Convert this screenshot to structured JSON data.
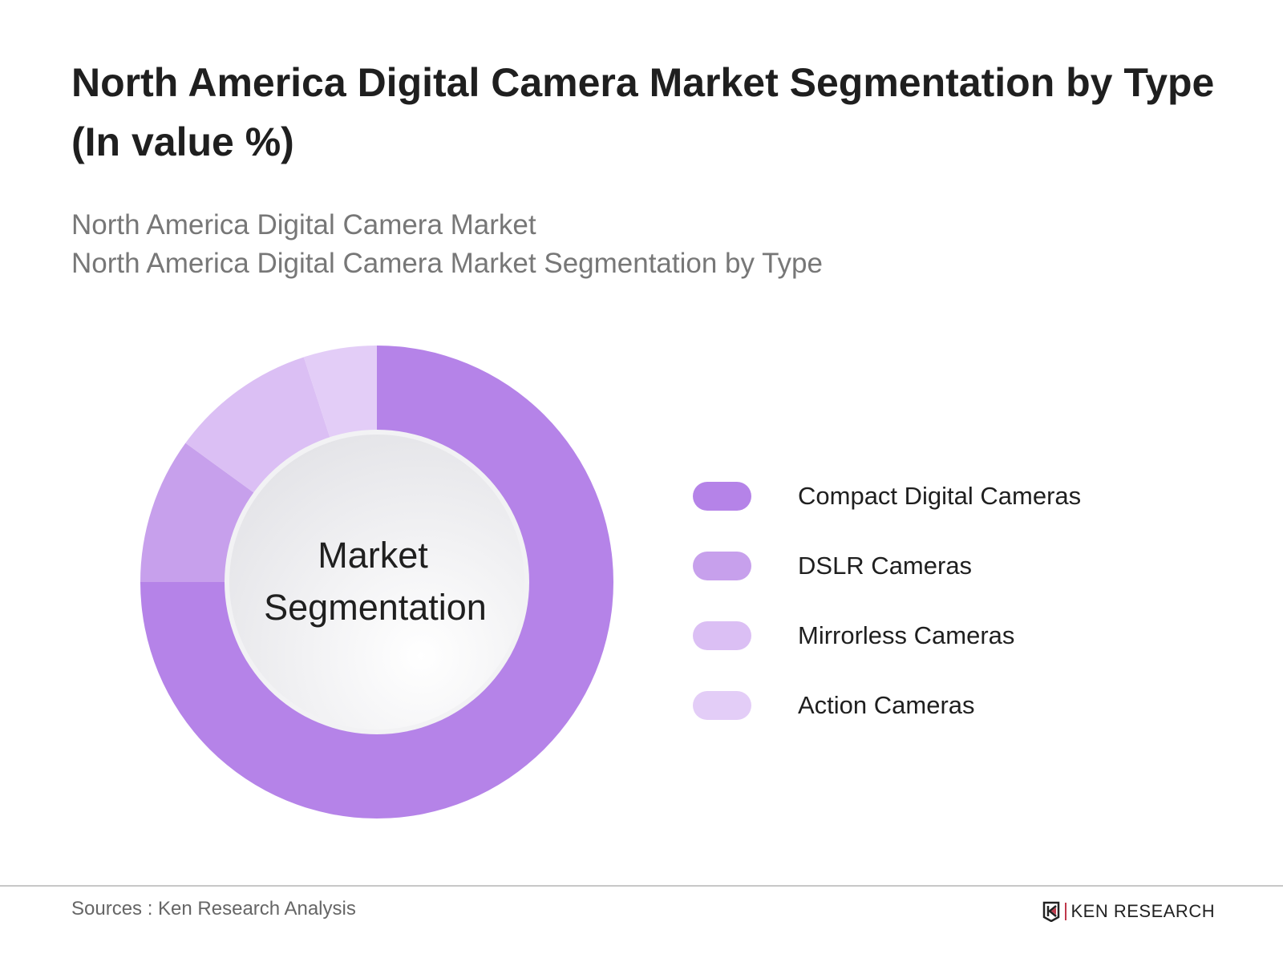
{
  "title": "North America Digital Camera Market Segmentation by Type (In value %)",
  "subtitle_lines": [
    "North America Digital Camera Market",
    "North America Digital Camera Market Segmentation by Type"
  ],
  "footer": {
    "sources": "Sources : Ken Research Analysis",
    "logo_text": "KEN RESEARCH"
  },
  "chart_data": {
    "type": "pie",
    "variant": "donut",
    "center_label": [
      "Market",
      "Segmentation"
    ],
    "legend_position": "right",
    "categories": [
      "Compact Digital Cameras",
      "DSLR Cameras",
      "Mirrorless Cameras",
      "Action Cameras"
    ],
    "values": [
      75,
      10,
      10,
      5
    ],
    "colors": [
      "#b583e8",
      "#c7a0ec",
      "#dbbff4",
      "#e3cdf7"
    ]
  }
}
